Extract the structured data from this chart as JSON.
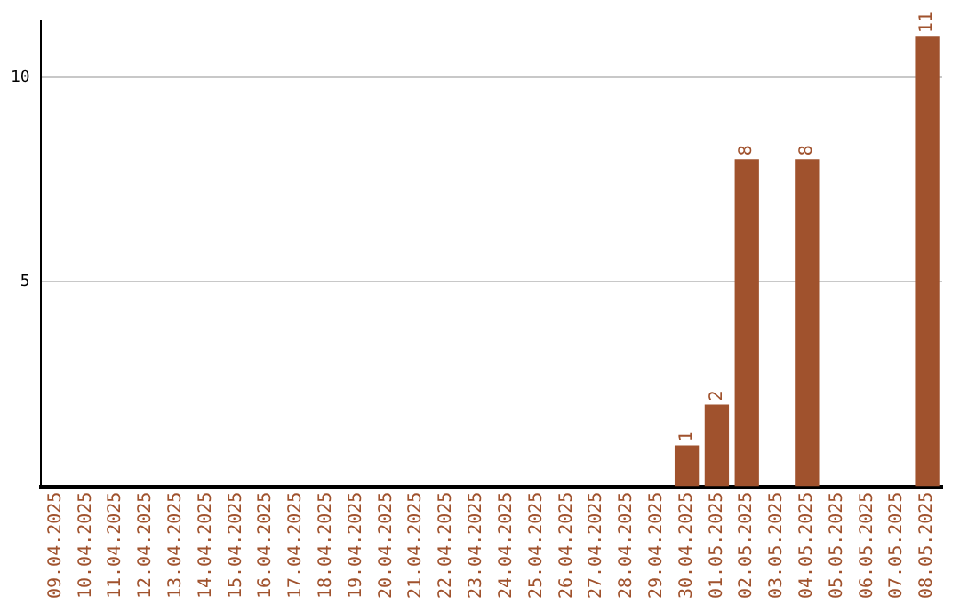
{
  "chart_data": {
    "type": "bar",
    "categories": [
      "09.04.2025",
      "10.04.2025",
      "11.04.2025",
      "12.04.2025",
      "13.04.2025",
      "14.04.2025",
      "15.04.2025",
      "16.04.2025",
      "17.04.2025",
      "18.04.2025",
      "19.04.2025",
      "20.04.2025",
      "21.04.2025",
      "22.04.2025",
      "23.04.2025",
      "24.04.2025",
      "25.04.2025",
      "26.04.2025",
      "27.04.2025",
      "28.04.2025",
      "29.04.2025",
      "30.04.2025",
      "01.05.2025",
      "02.05.2025",
      "03.05.2025",
      "04.05.2025",
      "05.05.2025",
      "06.05.2025",
      "07.05.2025",
      "08.05.2025"
    ],
    "values": [
      0,
      0,
      0,
      0,
      0,
      0,
      0,
      0,
      0,
      0,
      0,
      0,
      0,
      0,
      0,
      0,
      0,
      0,
      0,
      0,
      0,
      1,
      2,
      8,
      0,
      8,
      0,
      0,
      0,
      11
    ],
    "value_labels": [
      null,
      null,
      null,
      null,
      null,
      null,
      null,
      null,
      null,
      null,
      null,
      null,
      null,
      null,
      null,
      null,
      null,
      null,
      null,
      null,
      null,
      "1",
      "2",
      "8",
      null,
      "8",
      null,
      null,
      null,
      "11"
    ],
    "color": "#a0522d",
    "ylim": [
      0,
      11.4
    ],
    "yticks": [
      5,
      10
    ],
    "grid": "y",
    "legend": false
  }
}
